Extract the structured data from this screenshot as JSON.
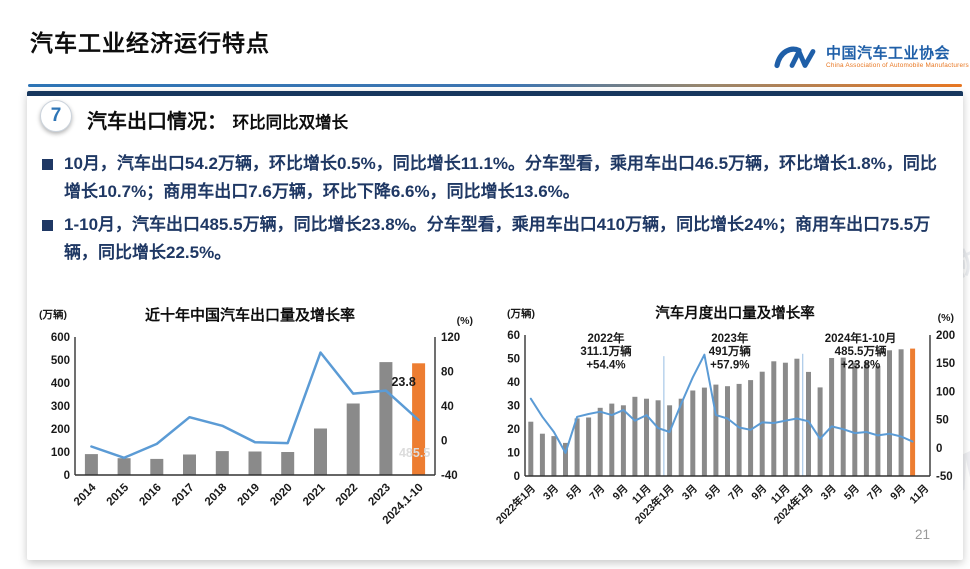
{
  "page": {
    "number": "21"
  },
  "header": {
    "title": "汽车工业经济运行特点",
    "logo": {
      "mark": "CM",
      "name_cn": "中国汽车工业协会",
      "name_en": "China Association of Automobile Manufacturers"
    }
  },
  "section": {
    "badge": "7",
    "title": "汽车出口情况：",
    "subtitle": "环比同比双增长"
  },
  "bullets": [
    "10月，汽车出口54.2万辆，环比增长0.5%，同比增长11.1%。分车型看，乘用车出口46.5万辆，环比增长1.8%，同比增长10.7%；商用车出口7.6万辆，环比下降6.6%，同比增长13.6%。",
    "1-10月，汽车出口485.5万辆，同比增长23.8%。分车型看，乘用车出口410万辆，同比增长24%；商用车出口75.5万辆，同比增长22.5%。"
  ],
  "watermark": "中国汽车工业协会",
  "colors": {
    "accent_orange": "#ED7D31",
    "bar_gray": "#8A8A8A",
    "line_blue": "#5B9BD5",
    "separator_blue": "#A8C8E8",
    "text_navy": "#1F3864",
    "header_navy": "#17375E",
    "logo_blue": "#1F5FA8"
  },
  "chart_data": [
    {
      "name": "decade-exports",
      "type": "bar+line",
      "title": "近十年中国汽车出口量及增长率",
      "left_axis": {
        "unit": "(万辆)",
        "min": 0,
        "max": 600,
        "ticks": [
          0,
          100,
          200,
          300,
          400,
          500,
          600
        ]
      },
      "right_axis": {
        "unit": "(%)",
        "min": -40,
        "max": 120,
        "ticks": [
          -40,
          0,
          40,
          80,
          120
        ]
      },
      "categories": [
        "2014",
        "2015",
        "2016",
        "2017",
        "2018",
        "2019",
        "2020",
        "2021",
        "2022",
        "2023",
        "2024.1-10"
      ],
      "bars": {
        "values": [
          91,
          73,
          70,
          89,
          104,
          102,
          100,
          202,
          311,
          491,
          485.5
        ],
        "highlight_index": 10
      },
      "line": {
        "values": [
          -7,
          -20,
          -4,
          27,
          17,
          -2,
          -3,
          102,
          54.4,
          57.9,
          23.8
        ]
      },
      "annotations": [
        {
          "lines": [
            "23.8"
          ],
          "slot": 10,
          "dx": -15,
          "axis": "right",
          "value": 63,
          "color": "#1a1a1a",
          "size": 12.5
        },
        {
          "lines": [
            "485.5"
          ],
          "slot": 10,
          "dx": -4,
          "axis": "left",
          "value": 78,
          "color": "#DCDCDC",
          "size": 12.5
        }
      ]
    },
    {
      "name": "monthly-exports",
      "type": "bar+line",
      "title": "汽车月度出口量及增长率",
      "left_axis": {
        "unit": "(万辆)",
        "min": 0,
        "max": 60,
        "ticks": [
          0,
          10,
          20,
          30,
          40,
          50,
          60
        ]
      },
      "right_axis": {
        "unit": "(%)",
        "min": -50,
        "max": 200,
        "ticks": [
          -50,
          0,
          50,
          100,
          150,
          200
        ]
      },
      "n_slots": 35,
      "x_ticks": [
        {
          "label": "2022年1月",
          "slot": 0
        },
        {
          "label": "3月",
          "slot": 2
        },
        {
          "label": "5月",
          "slot": 4
        },
        {
          "label": "7月",
          "slot": 6
        },
        {
          "label": "9月",
          "slot": 8
        },
        {
          "label": "11月",
          "slot": 10
        },
        {
          "label": "2023年1月",
          "slot": 12
        },
        {
          "label": "3月",
          "slot": 14
        },
        {
          "label": "5月",
          "slot": 16
        },
        {
          "label": "7月",
          "slot": 18
        },
        {
          "label": "9月",
          "slot": 20
        },
        {
          "label": "11月",
          "slot": 22
        },
        {
          "label": "2024年1月",
          "slot": 24
        },
        {
          "label": "3月",
          "slot": 26
        },
        {
          "label": "5月",
          "slot": 28
        },
        {
          "label": "7月",
          "slot": 30
        },
        {
          "label": "9月",
          "slot": 32
        },
        {
          "label": "11月",
          "slot": 34
        }
      ],
      "bars": {
        "values": [
          23.1,
          18.0,
          17.0,
          14.1,
          24.5,
          24.9,
          29.0,
          30.8,
          30.1,
          33.7,
          32.9,
          32.2,
          30.1,
          32.9,
          36.4,
          37.6,
          38.9,
          38.2,
          39.2,
          40.8,
          44.4,
          48.8,
          48.2,
          49.9,
          44.3,
          37.7,
          50.2,
          50.4,
          48.1,
          48.5,
          46.9,
          53.5,
          53.9,
          54.2
        ],
        "highlight_index": 33
      },
      "line": {
        "values": [
          87,
          55,
          28,
          -9,
          55,
          60,
          64,
          58,
          67,
          48,
          58,
          35,
          28,
          78,
          125,
          165,
          58,
          52,
          36,
          32,
          45,
          44,
          48,
          52,
          47,
          16,
          38,
          33,
          26,
          28,
          22,
          25,
          20,
          11
        ]
      },
      "separators": [
        {
          "slot": 12,
          "from": 51
        },
        {
          "slot": 24,
          "from": 52
        }
      ],
      "annotations": [
        {
          "lines": [
            "2022年",
            "311.1万辆",
            "+54.4%"
          ],
          "slot": 6.5,
          "dy": 7
        },
        {
          "lines": [
            "2023年",
            "491万辆",
            "+57.9%"
          ],
          "slot": 17.2,
          "dy": 7
        },
        {
          "lines": [
            "2024年1-10月",
            "485.5万辆",
            "+23.8%"
          ],
          "slot": 28.5,
          "dy": 7
        }
      ]
    }
  ]
}
